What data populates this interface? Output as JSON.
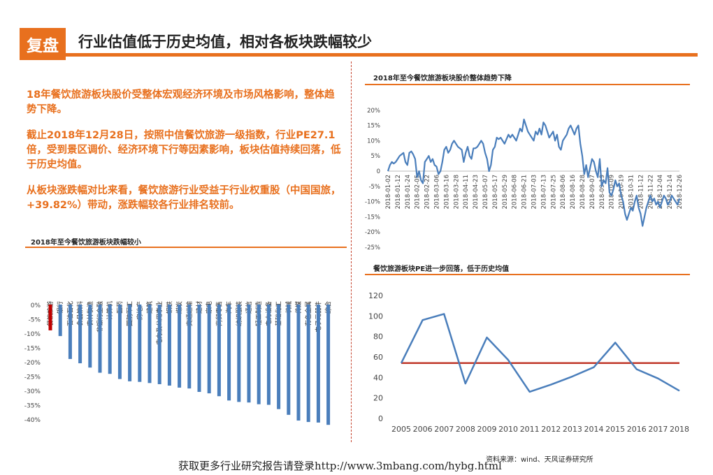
{
  "header": {
    "tag": "复盘",
    "title": "行业估值低于历史均值，相对各板块跌幅较少"
  },
  "text": {
    "p1": "18年餐饮旅游板块股价受整体宏观经济环境及市场风格影响，整体趋势下降。",
    "p2": "截止2018年12月28日，按照中信餐饮旅游一级指数，行业PE27.1倍，受到景区调价、经济环境下行等因素影响，板块估值持续回落，低于历史均值。",
    "p3": "从板块涨跌幅对比来看，餐饮旅游行业受益于行业权重股（中国国旅，+39.82%）带动，涨跌幅较各行业排名较前。"
  },
  "colors": {
    "accent": "#E8701E",
    "bar_blue": "#4A7EBB",
    "bar_highlight": "#C00000",
    "mean_line": "#C0392B"
  },
  "source": "资料来源：wind、天风证券研究所",
  "footer": "获取更多行业研究报告请登录http://www.3mbang.com/hybg.html",
  "chart_data": [
    {
      "type": "bar",
      "title": "2018年至今餐饮旅游板块跌幅较小",
      "categories": [
        "餐饮旅游",
        "银行",
        "石油石化",
        "食品饮料",
        "农林牧渔",
        "非银行金融",
        "计算机",
        "医药",
        "国防军工",
        "房地产",
        "建筑",
        "电力及公用事业",
        "钢铁",
        "煤炭",
        "交通运输",
        "建材",
        "家电",
        "商贸零售",
        "汽车",
        "纺织服装",
        "通信",
        "轻工制造",
        "电力设备",
        "基础化工",
        "机械",
        "传媒",
        "有色金属",
        "电子元器件",
        "综合"
      ],
      "values": [
        -9.0,
        -11.0,
        -19.0,
        -20.5,
        -22.0,
        -23.8,
        -24.2,
        -26.0,
        -26.8,
        -27.0,
        -27.4,
        -27.8,
        -28.3,
        -29.0,
        -29.3,
        -30.5,
        -31.0,
        -32.0,
        -33.5,
        -34.0,
        -34.2,
        -34.8,
        -35.0,
        -36.5,
        -38.5,
        -40.5,
        -41.0,
        -41.2,
        -42.0
      ],
      "highlight_index": 0,
      "y_ticks": [
        "0%",
        "-5%",
        "-10%",
        "-15%",
        "-20%",
        "-25%",
        "-30%",
        "-35%",
        "-40%"
      ],
      "ylim": [
        -42,
        0
      ]
    },
    {
      "type": "line",
      "title": "2018年至今餐饮旅游板块股价整体趋势下降",
      "x_labels": [
        "2018-01-02",
        "2018-01-12",
        "2018-01-24",
        "2018-02-05",
        "2018-02-22",
        "2018-03-06",
        "2018-03-16",
        "2018-03-28",
        "2018-04-11",
        "2018-04-23",
        "2018-05-07",
        "2018-05-17",
        "2018-05-29",
        "2018-06-08",
        "2018-06-21",
        "2018-07-03",
        "2018-07-13",
        "2018-07-25",
        "2018-08-06",
        "2018-08-16",
        "2018-08-28",
        "2018-09-07",
        "2018-09-19",
        "2018-10-09",
        "2018-10-19",
        "2018-10-31",
        "2018-11-12",
        "2018-11-22",
        "2018-12-04",
        "2018-12-14",
        "2018-12-26"
      ],
      "y_ticks": [
        "20%",
        "15%",
        "10%",
        "5%",
        "0",
        "-5%",
        "-10%",
        "-15%",
        "-20%",
        "-25%"
      ],
      "ylim": [
        -25,
        20
      ],
      "values": [
        0,
        2,
        3,
        2.5,
        3,
        4,
        5,
        5.5,
        6,
        3,
        2,
        6,
        6.5,
        5.5,
        4,
        -2,
        0,
        -3,
        -4,
        3,
        4,
        5,
        3,
        4,
        2,
        1.5,
        -1,
        0,
        3,
        7,
        8,
        6,
        7,
        9,
        10,
        9,
        8,
        7.5,
        7,
        3,
        6,
        8,
        5,
        4,
        7.5,
        7.5,
        8,
        9,
        10,
        9,
        6,
        4,
        0,
        2,
        7,
        8,
        11,
        10.5,
        11,
        10,
        9,
        10.5,
        12,
        11,
        12,
        11,
        10,
        12,
        14,
        13,
        17,
        15,
        13,
        12,
        11,
        10,
        13,
        12,
        14,
        12,
        16,
        15,
        13,
        11,
        12,
        13,
        10,
        12,
        8,
        7,
        10,
        11,
        12,
        14,
        15,
        13.5,
        12,
        14,
        15,
        9,
        5,
        -1,
        2,
        -2,
        1,
        4,
        3,
        0,
        -2,
        4,
        -5,
        -3,
        -4,
        1,
        -7,
        -8,
        -6,
        -3,
        -5,
        -4,
        -8,
        -10,
        -14,
        -16,
        -14,
        -12,
        -13,
        -10,
        -8,
        -12,
        -14,
        -18,
        -15,
        -12,
        -10,
        -8,
        -10,
        -9,
        -11,
        -10,
        -12,
        -10,
        -8,
        -9,
        -11,
        -10,
        -8,
        -9,
        -10,
        -11,
        -9
      ]
    },
    {
      "type": "line",
      "title": "餐饮旅游板块PE进一步回落，低于历史均值",
      "x": [
        2005,
        2006,
        2007,
        2008,
        2009,
        2010,
        2011,
        2012,
        2013,
        2014,
        2015,
        2016,
        2017,
        2018
      ],
      "series": [
        {
          "values": [
            54,
            96,
            102,
            34,
            79,
            57,
            26,
            33,
            41,
            50,
            74,
            48,
            39,
            27
          ]
        }
      ],
      "mean": 54,
      "y_ticks": [
        0,
        20,
        40,
        60,
        80,
        100,
        120
      ],
      "ylim": [
        0,
        120
      ]
    }
  ]
}
